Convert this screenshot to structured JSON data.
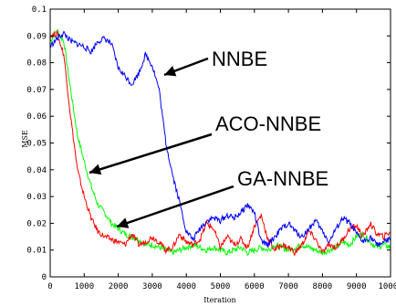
{
  "chart_data": {
    "type": "line",
    "xlabel": "Iteration",
    "ylabel": "MSE",
    "xlim": [
      0,
      10000
    ],
    "ylim": [
      0,
      0.1
    ],
    "xticks": [
      "0",
      "1000",
      "2000",
      "3000",
      "4000",
      "5000",
      "6000",
      "7000",
      "8000",
      "9000",
      "10000"
    ],
    "yticks": [
      "0",
      "0.01",
      "0.02",
      "0.03",
      "0.04",
      "0.05",
      "0.06",
      "0.07",
      "0.08",
      "0.09",
      "0.1"
    ],
    "grid": false,
    "legend": "none",
    "series": [
      {
        "name": "NNBE",
        "color": "#0000ff",
        "points": [
          [
            0,
            0.086
          ],
          [
            200,
            0.089
          ],
          [
            400,
            0.091
          ],
          [
            600,
            0.088
          ],
          [
            800,
            0.087
          ],
          [
            1000,
            0.086
          ],
          [
            1200,
            0.084
          ],
          [
            1400,
            0.088
          ],
          [
            1600,
            0.089
          ],
          [
            1800,
            0.087
          ],
          [
            2000,
            0.078
          ],
          [
            2200,
            0.075
          ],
          [
            2400,
            0.072
          ],
          [
            2600,
            0.076
          ],
          [
            2800,
            0.083
          ],
          [
            3000,
            0.079
          ],
          [
            3200,
            0.07
          ],
          [
            3400,
            0.05
          ],
          [
            3600,
            0.038
          ],
          [
            3800,
            0.028
          ],
          [
            4000,
            0.017
          ],
          [
            4200,
            0.014
          ],
          [
            4400,
            0.018
          ],
          [
            4600,
            0.021
          ],
          [
            4800,
            0.022
          ],
          [
            5000,
            0.021
          ],
          [
            5200,
            0.023
          ],
          [
            5400,
            0.022
          ],
          [
            5600,
            0.024
          ],
          [
            5800,
            0.027
          ],
          [
            6000,
            0.024
          ],
          [
            6200,
            0.013
          ],
          [
            6400,
            0.012
          ],
          [
            6600,
            0.015
          ],
          [
            6800,
            0.018
          ],
          [
            7000,
            0.02
          ],
          [
            7200,
            0.017
          ],
          [
            7400,
            0.015
          ],
          [
            7600,
            0.018
          ],
          [
            7800,
            0.021
          ],
          [
            8000,
            0.017
          ],
          [
            8200,
            0.013
          ],
          [
            8400,
            0.018
          ],
          [
            8600,
            0.022
          ],
          [
            8800,
            0.02
          ],
          [
            9000,
            0.016
          ],
          [
            9200,
            0.013
          ],
          [
            9400,
            0.015
          ],
          [
            9600,
            0.012
          ],
          [
            9800,
            0.013
          ],
          [
            10000,
            0.014
          ]
        ]
      },
      {
        "name": "ACO-NNBE",
        "color": "#00ff00",
        "points": [
          [
            0,
            0.088
          ],
          [
            200,
            0.092
          ],
          [
            400,
            0.088
          ],
          [
            600,
            0.07
          ],
          [
            800,
            0.053
          ],
          [
            1000,
            0.043
          ],
          [
            1200,
            0.034
          ],
          [
            1400,
            0.027
          ],
          [
            1600,
            0.024
          ],
          [
            1800,
            0.02
          ],
          [
            2000,
            0.018
          ],
          [
            2200,
            0.016
          ],
          [
            2400,
            0.015
          ],
          [
            2600,
            0.014
          ],
          [
            2800,
            0.012
          ],
          [
            3000,
            0.012
          ],
          [
            3200,
            0.011
          ],
          [
            3400,
            0.01
          ],
          [
            3600,
            0.009
          ],
          [
            3800,
            0.01
          ],
          [
            4000,
            0.011
          ],
          [
            4200,
            0.012
          ],
          [
            4400,
            0.011
          ],
          [
            4600,
            0.01
          ],
          [
            4800,
            0.011
          ],
          [
            5000,
            0.01
          ],
          [
            5200,
            0.009
          ],
          [
            5400,
            0.01
          ],
          [
            5600,
            0.011
          ],
          [
            5800,
            0.009
          ],
          [
            6000,
            0.01
          ],
          [
            6200,
            0.011
          ],
          [
            6400,
            0.01
          ],
          [
            6600,
            0.012
          ],
          [
            6800,
            0.011
          ],
          [
            7000,
            0.01
          ],
          [
            7200,
            0.011
          ],
          [
            7400,
            0.012
          ],
          [
            7600,
            0.011
          ],
          [
            7800,
            0.01
          ],
          [
            8000,
            0.009
          ],
          [
            8200,
            0.01
          ],
          [
            8400,
            0.011
          ],
          [
            8600,
            0.013
          ],
          [
            8800,
            0.012
          ],
          [
            9000,
            0.015
          ],
          [
            9200,
            0.016
          ],
          [
            9400,
            0.013
          ],
          [
            9600,
            0.011
          ],
          [
            9800,
            0.012
          ],
          [
            10000,
            0.011
          ]
        ]
      },
      {
        "name": "GA-NNBE",
        "color": "#ff0000",
        "points": [
          [
            0,
            0.09
          ],
          [
            200,
            0.091
          ],
          [
            400,
            0.083
          ],
          [
            600,
            0.06
          ],
          [
            800,
            0.04
          ],
          [
            1000,
            0.03
          ],
          [
            1200,
            0.022
          ],
          [
            1400,
            0.017
          ],
          [
            1600,
            0.015
          ],
          [
            1800,
            0.014
          ],
          [
            2000,
            0.013
          ],
          [
            2200,
            0.012
          ],
          [
            2400,
            0.016
          ],
          [
            2600,
            0.012
          ],
          [
            2800,
            0.013
          ],
          [
            3000,
            0.015
          ],
          [
            3200,
            0.013
          ],
          [
            3400,
            0.01
          ],
          [
            3600,
            0.011
          ],
          [
            3800,
            0.016
          ],
          [
            4000,
            0.013
          ],
          [
            4200,
            0.012
          ],
          [
            4400,
            0.014
          ],
          [
            4600,
            0.02
          ],
          [
            4800,
            0.018
          ],
          [
            5000,
            0.011
          ],
          [
            5200,
            0.015
          ],
          [
            5400,
            0.012
          ],
          [
            5600,
            0.014
          ],
          [
            5800,
            0.011
          ],
          [
            6000,
            0.019
          ],
          [
            6200,
            0.023
          ],
          [
            6400,
            0.014
          ],
          [
            6600,
            0.01
          ],
          [
            6800,
            0.012
          ],
          [
            7000,
            0.011
          ],
          [
            7200,
            0.009
          ],
          [
            7400,
            0.012
          ],
          [
            7600,
            0.017
          ],
          [
            7800,
            0.014
          ],
          [
            8000,
            0.009
          ],
          [
            8200,
            0.012
          ],
          [
            8400,
            0.011
          ],
          [
            8600,
            0.014
          ],
          [
            8800,
            0.018
          ],
          [
            9000,
            0.019
          ],
          [
            9200,
            0.015
          ],
          [
            9400,
            0.02
          ],
          [
            9600,
            0.016
          ],
          [
            9800,
            0.015
          ],
          [
            10000,
            0.017
          ]
        ]
      }
    ],
    "annotations": [
      {
        "text": "NNBE",
        "target_series": "NNBE"
      },
      {
        "text": "ACO-NNBE",
        "target_series": "ACO-NNBE"
      },
      {
        "text": "GA-NNBE",
        "target_series": "GA-NNBE"
      }
    ]
  }
}
